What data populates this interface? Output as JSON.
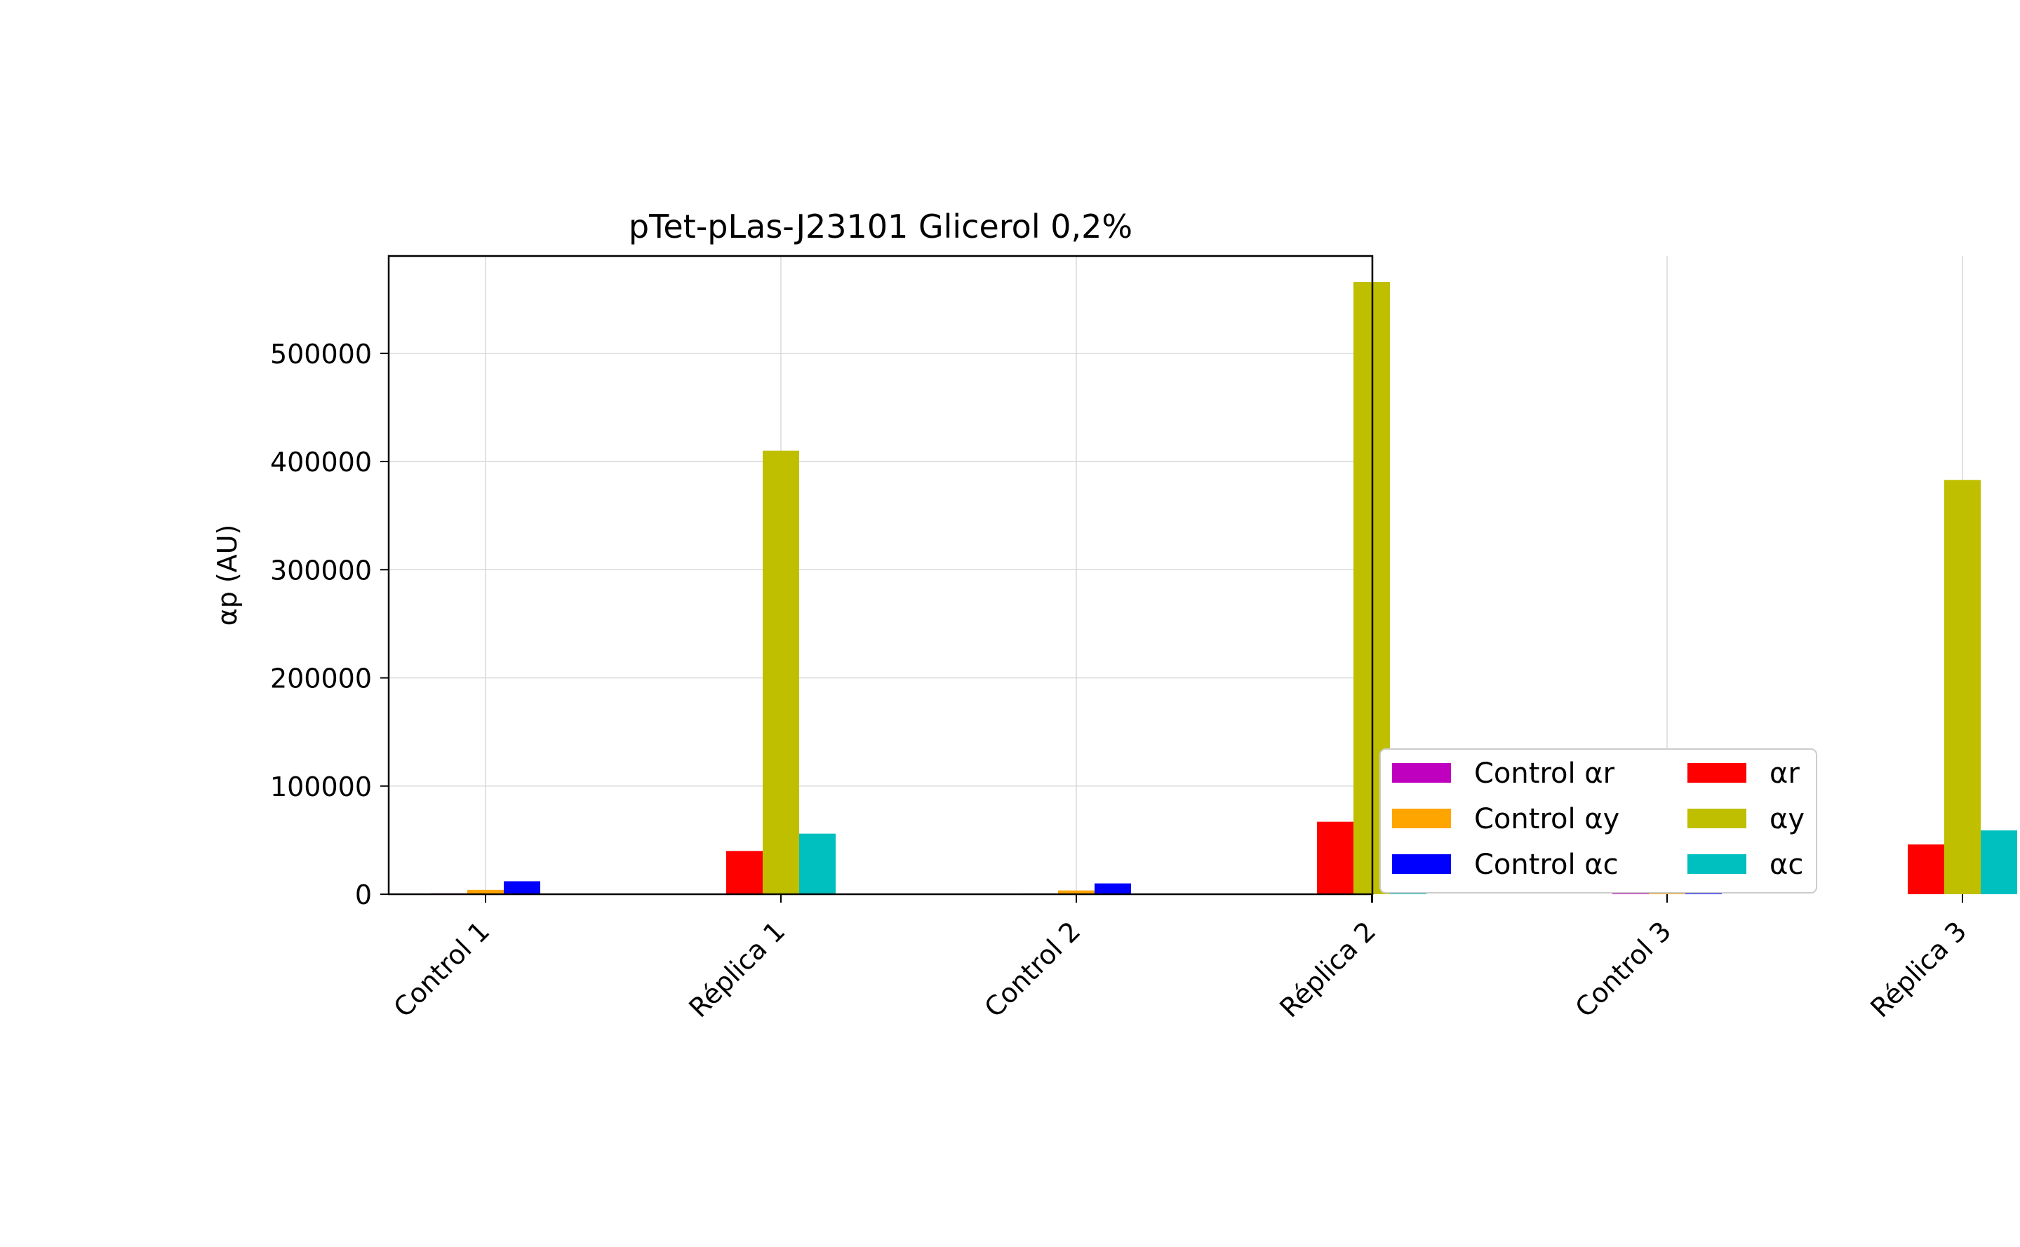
{
  "chart_data": {
    "type": "bar",
    "title": "pTet-pLas-J23101 Glicerol 0,2%",
    "xlabel": "",
    "ylabel": "αp (AU)",
    "categories": [
      "Control 1",
      "Réplica 1",
      "Control 2",
      "Réplica 2",
      "Control 3",
      "Réplica 3"
    ],
    "series": [
      {
        "name": "Control αr",
        "color": "#bf00bf",
        "values": [
          800,
          null,
          700,
          null,
          900,
          null
        ]
      },
      {
        "name": "Control αy",
        "color": "#ffa500",
        "values": [
          4000,
          null,
          3500,
          null,
          4500,
          null
        ]
      },
      {
        "name": "Control αc",
        "color": "#0000ff",
        "values": [
          12000,
          null,
          10000,
          null,
          10500,
          null
        ]
      },
      {
        "name": "αr",
        "color": "#ff0000",
        "values": [
          null,
          40000,
          null,
          67000,
          null,
          46000
        ]
      },
      {
        "name": "αy",
        "color": "#bfbf00",
        "values": [
          null,
          410000,
          null,
          566000,
          null,
          383000
        ]
      },
      {
        "name": "αc",
        "color": "#00bfbf",
        "values": [
          null,
          56000,
          null,
          74000,
          null,
          59000
        ]
      }
    ],
    "ylim": [
      0,
      590000
    ],
    "yticks": [
      "0",
      "100000",
      "200000",
      "300000",
      "400000",
      "500000"
    ],
    "grid": true,
    "legend": {
      "placement": "outside-right-bottom",
      "columns": 2
    }
  }
}
